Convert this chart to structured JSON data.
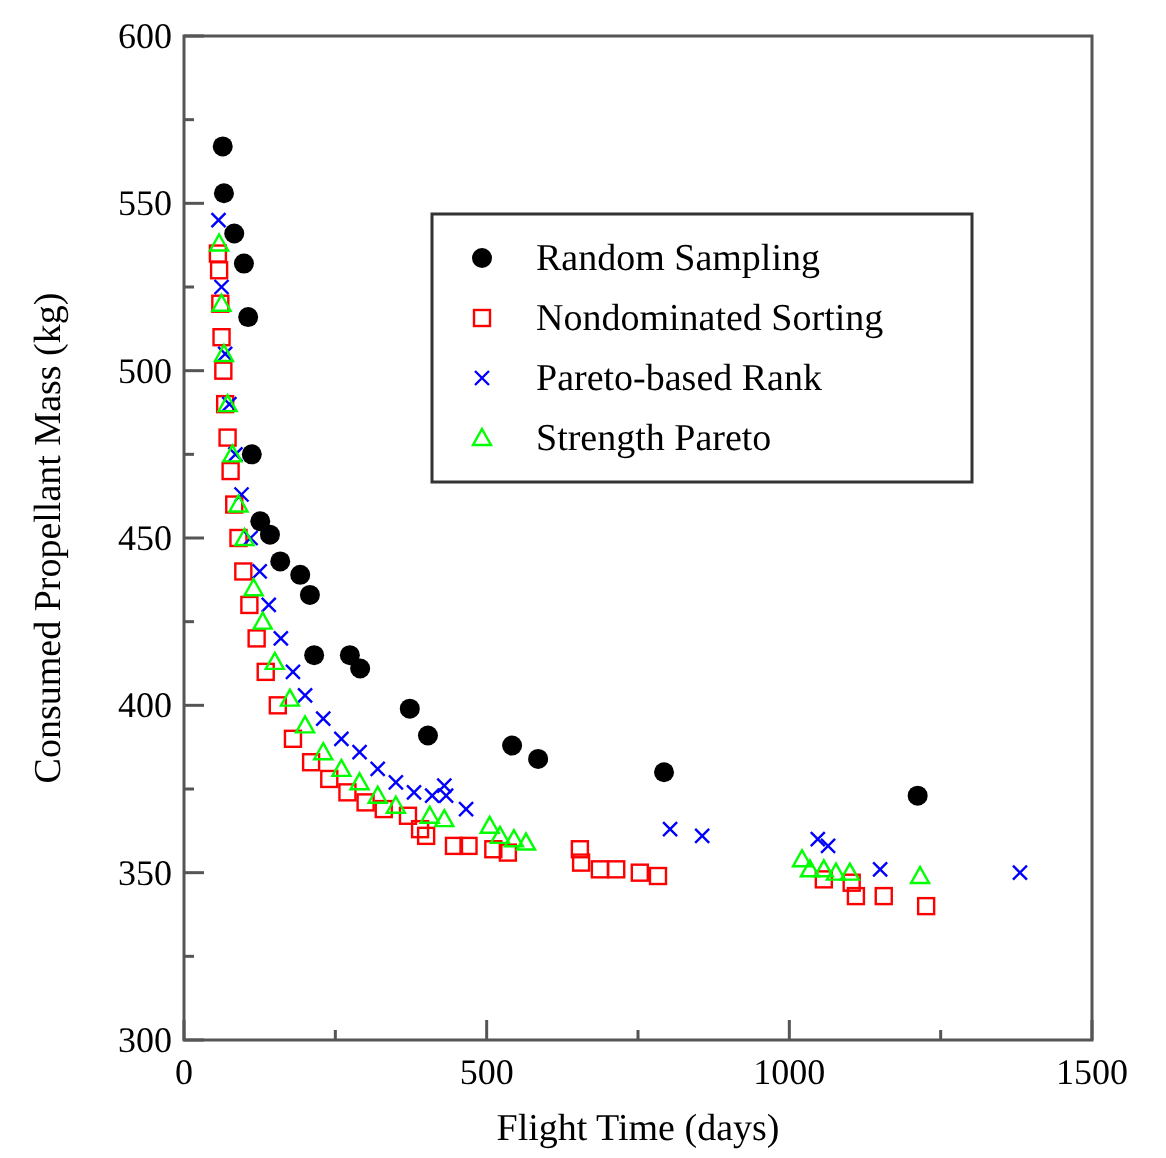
{
  "chart_data": {
    "type": "scatter",
    "xlabel": "Flight Time (days)",
    "ylabel": "Consumed Propellant Mass (kg)",
    "xlim": [
      0,
      1500
    ],
    "ylim": [
      300,
      600
    ],
    "xticks": [
      0,
      {
        "value": 250,
        "label": null
      },
      500,
      {
        "value": 750,
        "label": null
      },
      1000,
      {
        "value": 1250,
        "label": null
      },
      1500
    ],
    "yticks": [
      300,
      {
        "value": 325,
        "label": null
      },
      350,
      {
        "value": 375,
        "label": null
      },
      400,
      {
        "value": 425,
        "label": null
      },
      450,
      {
        "value": 475,
        "label": null
      },
      500,
      {
        "value": 525,
        "label": null
      },
      550,
      {
        "value": 575,
        "label": null
      },
      600
    ],
    "grid": false,
    "legend": "top right",
    "series": [
      {
        "name": "Random Sampling",
        "color": "#000000",
        "marker": "circle",
        "x": [
          64,
          66,
          83,
          99,
          106,
          112,
          126,
          142,
          159,
          192,
          208,
          215,
          274,
          291,
          373,
          403,
          542,
          585,
          793,
          1212
        ],
        "values": [
          567,
          553,
          541,
          532,
          516,
          475,
          455,
          451,
          443,
          439,
          433,
          415,
          415,
          411,
          399,
          391,
          388,
          384,
          380,
          373
        ]
      },
      {
        "name": "Nondominated Sorting",
        "color": "#ff0000",
        "marker": "square",
        "x": [
          56,
          58,
          60,
          62,
          65,
          68,
          72,
          77,
          83,
          90,
          98,
          108,
          120,
          135,
          155,
          180,
          210,
          240,
          270,
          300,
          330,
          370,
          390,
          400,
          446,
          470,
          511,
          535,
          654,
          656,
          687,
          714,
          753,
          783,
          1057,
          1103,
          1110,
          1156,
          1226
        ],
        "values": [
          535,
          530,
          520,
          510,
          500,
          490,
          480,
          470,
          460,
          450,
          440,
          430,
          420,
          410,
          400,
          390,
          383,
          378,
          374,
          371,
          369,
          367,
          363,
          361,
          358,
          358,
          357,
          356,
          357,
          353,
          351,
          351,
          350,
          349,
          348,
          347,
          343,
          343,
          340
        ]
      },
      {
        "name": "Pareto-based Rank",
        "color": "#0000ff",
        "marker": "cross",
        "x": [
          57,
          62,
          68,
          75,
          85,
          95,
          110,
          125,
          140,
          160,
          180,
          200,
          230,
          260,
          290,
          320,
          350,
          380,
          410,
          430,
          433,
          466,
          803,
          856,
          1047,
          1064,
          1150,
          1381
        ],
        "values": [
          545,
          525,
          505,
          490,
          475,
          463,
          450,
          440,
          430,
          420,
          410,
          403,
          396,
          390,
          386,
          381,
          377,
          374,
          373,
          376,
          373,
          369,
          363,
          361,
          360,
          358,
          351,
          350
        ]
      },
      {
        "name": "Strength Pareto",
        "color": "#00ff00",
        "marker": "triangle",
        "x": [
          58,
          62,
          66,
          72,
          80,
          90,
          100,
          115,
          130,
          150,
          175,
          200,
          230,
          260,
          290,
          320,
          350,
          406,
          430,
          505,
          522,
          545,
          565,
          1021,
          1034,
          1057,
          1077,
          1100,
          1216
        ],
        "values": [
          538,
          520,
          505,
          490,
          475,
          460,
          450,
          435,
          425,
          413,
          402,
          394,
          386,
          381,
          377,
          373,
          370,
          367,
          366,
          364,
          361,
          360,
          359,
          354,
          351,
          351,
          350,
          350,
          349
        ]
      }
    ]
  }
}
